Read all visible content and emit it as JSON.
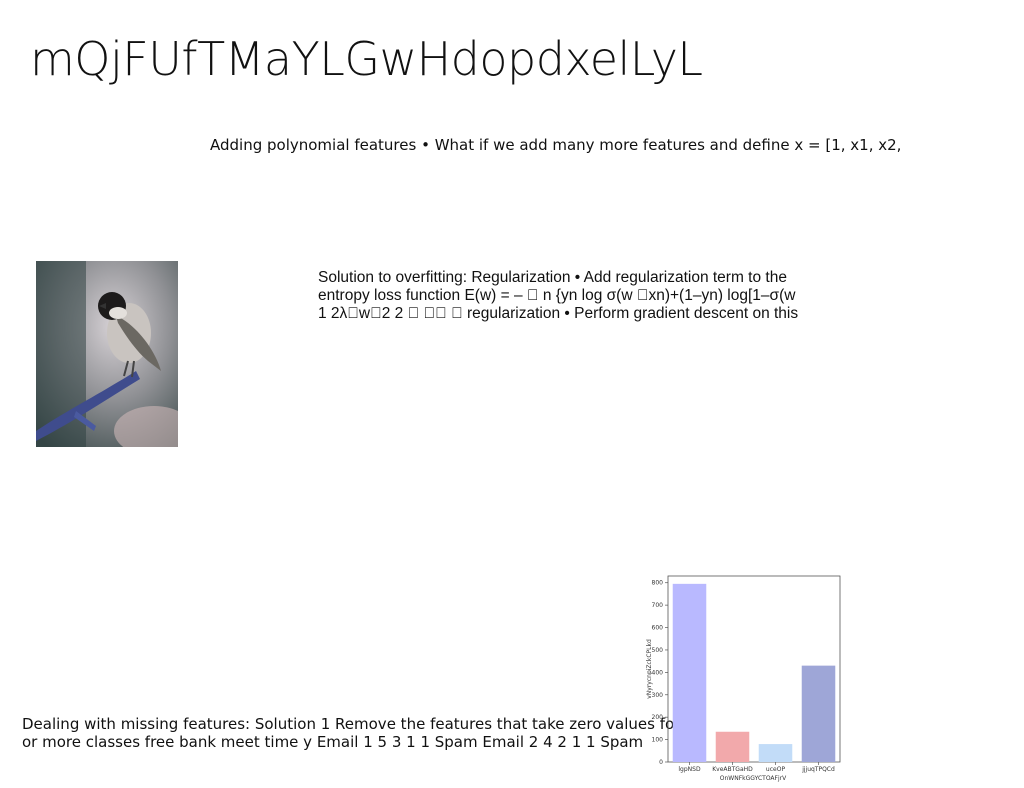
{
  "title": "mQjFUfTMaYLGwHdopdxelLyL",
  "caption1": "Adding polynomial features • What if we add many more features and define x = [1, x1, x2,",
  "regularization": {
    "lines": [
      "Solution to overfitting: Regularization • Add regularization term to the",
      "entropy loss function E(w) = – \u0000 n {yn log σ(w \u0000xn)+(1–yn) log[1–σ(w",
      "1 2λ\u0000w\u00002 2 \u0000 \u0000\u0000 \u0000 regularization • Perform gradient descent on this"
    ]
  },
  "missing": {
    "lines": [
      "Dealing with missing features: Solution 1 Remove the features that take zero values for",
      "or more classes free bank meet time y Email 1 5 3 1 1 Spam Email 2 4 2 1 1 Spam"
    ]
  },
  "chart_data": {
    "type": "bar",
    "categories": [
      "lgpNSD",
      "KveABTGaHD",
      "uceOP",
      "jjjuqTPQCd"
    ],
    "values": [
      795,
      135,
      80,
      430
    ],
    "colors": [
      "#b9b9ff",
      "#f2a9ab",
      "#c2dcf8",
      "#9ea6d7"
    ],
    "xlabel": "OnWNFkGGYCTOAFjrV",
    "ylabel": "vNyrycnpiZckCPLkd",
    "yticks": [
      0,
      100,
      200,
      300,
      400,
      500,
      600,
      700,
      800
    ],
    "ylim": [
      0,
      830
    ]
  }
}
